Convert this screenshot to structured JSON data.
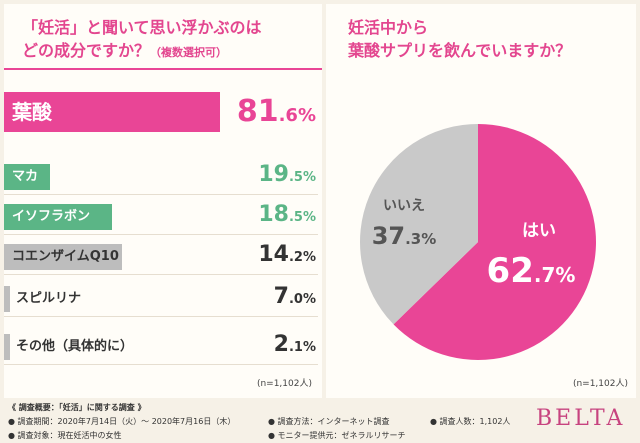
{
  "left": {
    "title_line1": "「妊活」と聞いて思い浮かぶのは",
    "title_line2": "どの成分ですか？",
    "title_suffix": "（複数選択可）",
    "note": "(n=1,102人)"
  },
  "right": {
    "title_line1": "妊活中から",
    "title_line2": "葉酸サプリを飲んでいますか？",
    "note": "(n=1,102人)"
  },
  "footer": {
    "summary": "《 調査概要：「妊活」に関する調査 》",
    "period": "● 調査期間：2020年7月14日（火）～ 2020年7月16日（木）",
    "method": "● 調査方法：インターネット調査",
    "respondents": "● 調査人数：1,102人",
    "target": "● 調査対象：現在妊活中の女性",
    "provider": "● モニター提供元：ゼネラルリサーチ"
  },
  "brand": "BELTA",
  "colors": {
    "pink": "#e94596",
    "green": "#5bb586",
    "gray": "#bdbdbd",
    "darkgray": "#7d7d7d"
  },
  "chart_data": [
    {
      "type": "bar",
      "orientation": "horizontal",
      "title": "「妊活」と聞いて思い浮かぶのはどの成分ですか？（複数選択可）",
      "categories": [
        "葉酸",
        "マカ",
        "イソフラボン",
        "コエンザイムQ10",
        "スピルリナ",
        "その他（具体的に）"
      ],
      "values": [
        81.6,
        19.5,
        18.5,
        14.2,
        7.0,
        2.1
      ],
      "value_labels": [
        {
          "int": "81",
          "dec": ".6%"
        },
        {
          "int": "19",
          "dec": ".5%"
        },
        {
          "int": "18",
          "dec": ".5%"
        },
        {
          "int": "14",
          "dec": ".2%"
        },
        {
          "int": "7",
          "dec": ".0%"
        },
        {
          "int": "2",
          "dec": ".1%"
        }
      ],
      "unit": "%",
      "xlim": [
        0,
        100
      ]
    },
    {
      "type": "pie",
      "title": "妊活中から葉酸サプリを飲んでいますか？",
      "labels": [
        "はい",
        "いいえ"
      ],
      "values": [
        62.7,
        37.3
      ],
      "value_labels": [
        {
          "int": "62",
          "dec": ".7%"
        },
        {
          "int": "37",
          "dec": ".3%"
        }
      ]
    }
  ]
}
